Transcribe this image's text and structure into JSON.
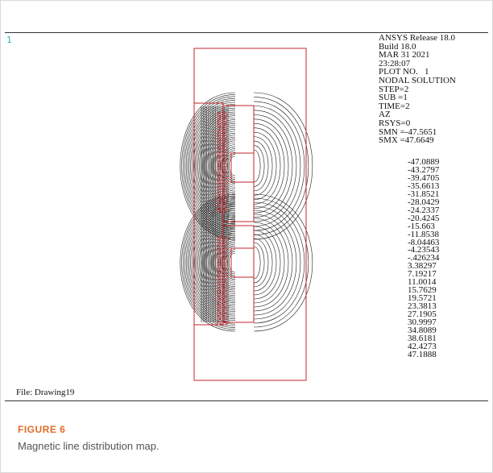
{
  "plot": {
    "corner_number": "1",
    "file_label": "File: Drawing19",
    "info_lines": [
      "ANSYS Release 18.0",
      "Build 18.0",
      "MAR 31 2021",
      "23:28:07",
      "PLOT NO.   1",
      "NODAL SOLUTION",
      "STEP=2",
      "SUB =1",
      "TIME=2",
      "AZ",
      "RSYS=0",
      "SMN =-47.5651",
      "SMX =47.6649"
    ],
    "legend_values": [
      "-47.0889",
      "-43.2797",
      "-39.4705",
      "-35.6613",
      "-31.8521",
      "-28.0429",
      "-24.2337",
      "-20.4245",
      "-15.663",
      "-11.8538",
      "-8.04463",
      "-4.23543",
      "-.426234",
      "3.38297",
      "7.19217",
      "11.0014",
      "15.7629",
      "19.5721",
      "23.3813",
      "27.1905",
      "30.9997",
      "34.8089",
      "38.6181",
      "42.4273",
      "47.1888"
    ],
    "colors": {
      "boundary": "#c0262d",
      "contour": "#1a1a1a",
      "corner_number": "#2bb3b3"
    }
  },
  "figure": {
    "label": "FIGURE 6",
    "caption": "Magnetic line distribution map."
  }
}
